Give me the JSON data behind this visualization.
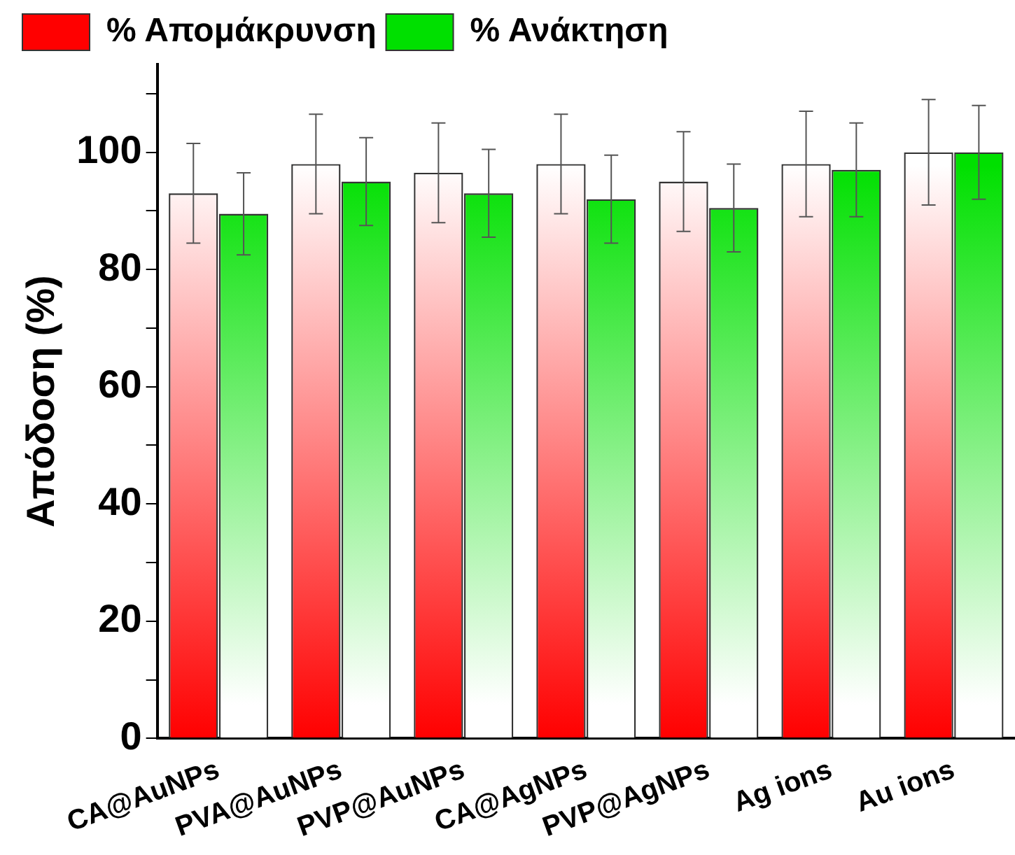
{
  "chart_data": {
    "type": "bar",
    "ylabel": "Απόδοση (%)",
    "categories": [
      "CA@AuNPs",
      "PVA@AuNPs",
      "PVP@AuNPs",
      "CA@AgNPs",
      "PVP@AgNPs",
      "Ag ions",
      "Au ions"
    ],
    "series": [
      {
        "name": "% Απομάκρυνση",
        "color": "#ff0000",
        "values": [
          93,
          98,
          96.5,
          98,
          95,
          98,
          100
        ],
        "errors": [
          8.5,
          8.5,
          8.5,
          8.5,
          8.5,
          9,
          9
        ]
      },
      {
        "name": "% Ανάκτηση",
        "color": "#00e000",
        "values": [
          89.5,
          95,
          93,
          92,
          90.5,
          97,
          100
        ],
        "errors": [
          7,
          7.5,
          7.5,
          7.5,
          7.5,
          8,
          8
        ]
      }
    ],
    "ylim": [
      0,
      115
    ],
    "yticks": [
      0,
      {
        "value": 10,
        "label": null
      },
      20,
      {
        "value": 30,
        "label": null
      },
      40,
      {
        "value": 50,
        "label": null
      },
      60,
      {
        "value": 70,
        "label": null
      },
      80,
      {
        "value": 90,
        "label": null
      },
      100,
      {
        "value": 110,
        "label": null
      }
    ],
    "grid": false,
    "legend": "top left"
  }
}
